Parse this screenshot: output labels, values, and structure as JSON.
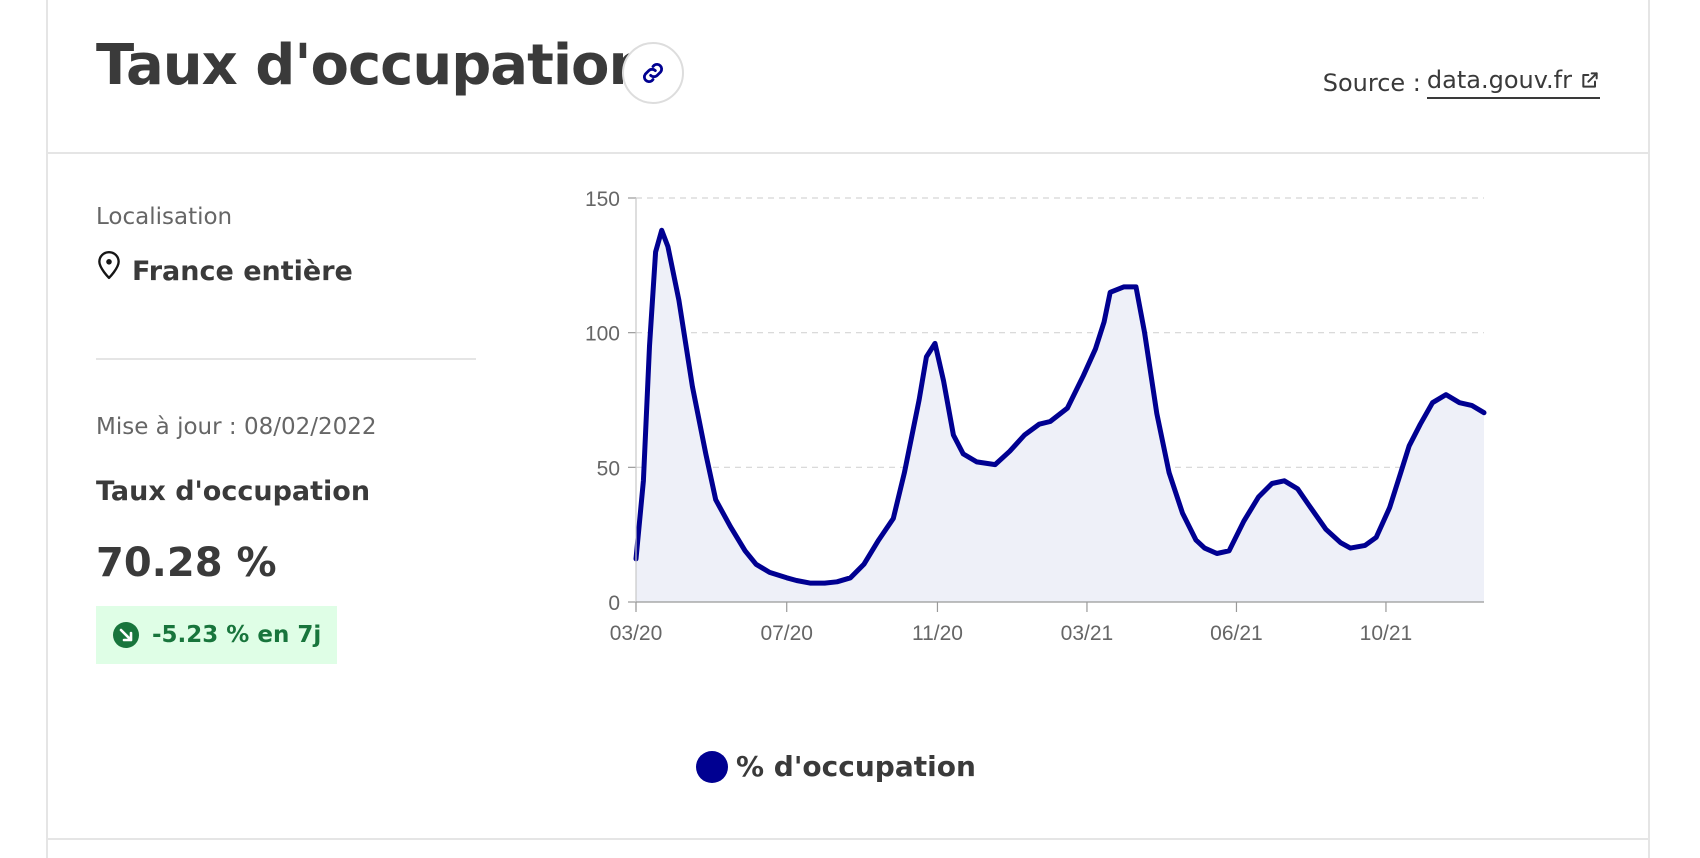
{
  "header": {
    "title": "Taux d'occupation",
    "source_prefix": "Source :",
    "source_link": "data.gouv.fr"
  },
  "sidebar": {
    "location_label": "Localisation",
    "location_value": "France entière",
    "update_text": "Mise à jour : 08/02/2022",
    "metric_label": "Taux d'occupation",
    "metric_value": "70.28 %",
    "change_text": "-5.23 % en 7j"
  },
  "colors": {
    "line": "#000091",
    "fill": "#eef0f8",
    "badge_bg": "#dffee6",
    "badge_text": "#18753c"
  },
  "icons": [
    "link-icon",
    "external-link-icon",
    "map-pin-icon",
    "arrow-down-right-icon"
  ],
  "chart_data": {
    "type": "area",
    "title": "",
    "xlabel": "",
    "ylabel": "",
    "ylim": [
      0,
      150
    ],
    "yticks": [
      0,
      50,
      100,
      150
    ],
    "xlim": [
      "2020-03-18",
      "2022-02-08"
    ],
    "xticks": [
      {
        "label": "03/20",
        "date": "2020-03-18"
      },
      {
        "label": "07/20",
        "date": "2020-07-19"
      },
      {
        "label": "11/20",
        "date": "2020-11-19"
      },
      {
        "label": "03/21",
        "date": "2021-03-21"
      },
      {
        "label": "06/21",
        "date": "2021-07-21"
      },
      {
        "label": "10/21",
        "date": "2021-11-20"
      }
    ],
    "grid": true,
    "legend": "bottom",
    "series": [
      {
        "name": "% d'occupation",
        "x": [
          "2020-03-18",
          "2020-03-24",
          "2020-03-29",
          "2020-04-03",
          "2020-04-08",
          "2020-04-13",
          "2020-04-22",
          "2020-05-03",
          "2020-05-14",
          "2020-05-22",
          "2020-06-03",
          "2020-06-15",
          "2020-06-24",
          "2020-07-05",
          "2020-07-19",
          "2020-07-27",
          "2020-08-07",
          "2020-08-19",
          "2020-08-29",
          "2020-09-09",
          "2020-09-20",
          "2020-10-02",
          "2020-10-14",
          "2020-10-23",
          "2020-11-04",
          "2020-11-10",
          "2020-11-17",
          "2020-11-24",
          "2020-12-02",
          "2020-12-10",
          "2020-12-21",
          "2021-01-05",
          "2021-01-17",
          "2021-01-29",
          "2021-02-10",
          "2021-02-19",
          "2021-03-05",
          "2021-03-18",
          "2021-03-28",
          "2021-04-04",
          "2021-04-09",
          "2021-04-20",
          "2021-04-30",
          "2021-05-07",
          "2021-05-17",
          "2021-05-27",
          "2021-06-07",
          "2021-06-18",
          "2021-06-25",
          "2021-07-05",
          "2021-07-15",
          "2021-07-27",
          "2021-08-08",
          "2021-08-19",
          "2021-08-29",
          "2021-09-09",
          "2021-09-18",
          "2021-10-02",
          "2021-10-14",
          "2021-10-22",
          "2021-11-03",
          "2021-11-12",
          "2021-11-23",
          "2021-12-02",
          "2021-12-09",
          "2021-12-18",
          "2021-12-28",
          "2022-01-08",
          "2022-01-19",
          "2022-01-29",
          "2022-02-08"
        ],
        "values": [
          16,
          45,
          95,
          130,
          138,
          132,
          112,
          80,
          55,
          38,
          28,
          19,
          14,
          11,
          9,
          8,
          7,
          7,
          7.5,
          9,
          14,
          23,
          31,
          48,
          75,
          91,
          96,
          82,
          62,
          55,
          52,
          51,
          56,
          62,
          66,
          67,
          72,
          84,
          94,
          104,
          115,
          117,
          117,
          100,
          70,
          48,
          33,
          23,
          20,
          18,
          19,
          30,
          39,
          44,
          45,
          42,
          36,
          27,
          22,
          20,
          21,
          24,
          35,
          48,
          58,
          66,
          74,
          77,
          74,
          73,
          70.3
        ]
      }
    ]
  }
}
